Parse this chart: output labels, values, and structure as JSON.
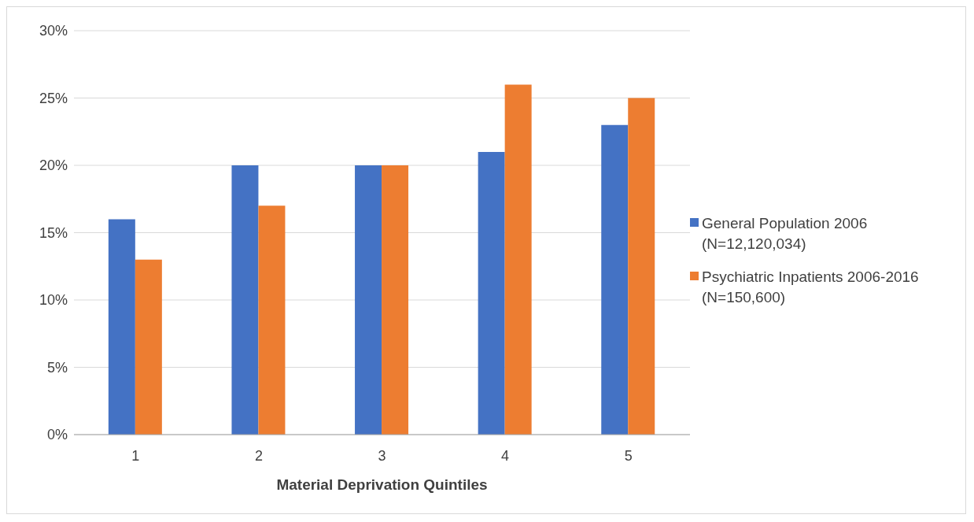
{
  "chart_data": {
    "type": "bar",
    "xlabel": "Material Deprivation Quintiles",
    "categories": [
      "1",
      "2",
      "3",
      "4",
      "5"
    ],
    "series": [
      {
        "name": "General Population 2006 (N=12,120,034)",
        "color": "#4472c4",
        "values": [
          16,
          20,
          20,
          21,
          23
        ]
      },
      {
        "name": "Psychiatric Inpatients 2006-2016 (N=150,600)",
        "color": "#ed7d31",
        "values": [
          13,
          17,
          20,
          26,
          25
        ]
      }
    ],
    "ylim": [
      0,
      30
    ],
    "yticks": [
      {
        "value": 0,
        "label": "0%"
      },
      {
        "value": 5,
        "label": "5%"
      },
      {
        "value": 10,
        "label": "10%"
      },
      {
        "value": 15,
        "label": "15%"
      },
      {
        "value": 20,
        "label": "20%"
      },
      {
        "value": 25,
        "label": "25%"
      },
      {
        "value": 30,
        "label": "30%"
      }
    ],
    "grid": "y",
    "legend": "right"
  }
}
